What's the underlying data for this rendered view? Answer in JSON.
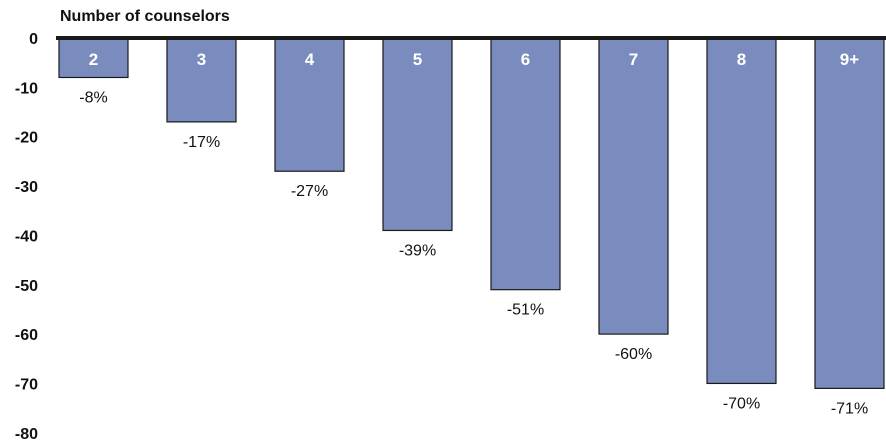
{
  "chart_data": {
    "type": "bar",
    "title": "Number of counselors",
    "categories": [
      "2",
      "3",
      "4",
      "5",
      "6",
      "7",
      "8",
      "9+"
    ],
    "values": [
      -8,
      -17,
      -27,
      -39,
      -51,
      -60,
      -70,
      -71
    ],
    "data_labels": [
      "-8%",
      "-17%",
      "-27%",
      "-39%",
      "-51%",
      "-60%",
      "-70%",
      "-71%"
    ],
    "y_ticks": [
      "0",
      "-10",
      "-20",
      "-30",
      "-40",
      "-50",
      "-60",
      "-70",
      "-80"
    ],
    "ylim": [
      -80,
      0
    ],
    "grid": false,
    "legend": "none",
    "colors": {
      "bar_fill": "#7a8bbd",
      "bar_stroke": "#1a1a1a",
      "baseline": "#1a1a1a"
    }
  }
}
